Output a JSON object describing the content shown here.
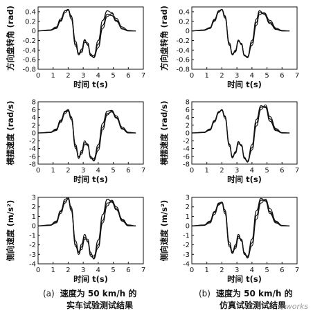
{
  "chart_data": [
    {
      "type": "line",
      "panel": "a-1",
      "ylabel": "方向盘转角 (rad)",
      "xlabel": "时间 t(s)",
      "xlim": [
        0,
        7
      ],
      "ylim": [
        -0.8,
        0.5
      ],
      "xticks": [
        "0",
        "1",
        "2",
        "3",
        "4",
        "5",
        "6",
        "7"
      ],
      "yticks": [
        "0.4",
        "0.2",
        "0",
        "-0.2",
        "-0.4",
        "-0.6",
        "-0.8"
      ],
      "series": [
        {
          "x": [
            0,
            0.8,
            1.2,
            1.5,
            1.8,
            2.0,
            2.2,
            2.5,
            2.7,
            2.9,
            3.1,
            3.3,
            3.5,
            3.7,
            4.0,
            4.3,
            4.6,
            4.9,
            5.2,
            5.6,
            6.0,
            6.5
          ],
          "y": [
            0,
            0.01,
            0.06,
            0.22,
            0.42,
            0.45,
            0.3,
            -0.28,
            -0.5,
            -0.42,
            -0.2,
            -0.28,
            -0.52,
            -0.55,
            -0.2,
            0.22,
            0.42,
            0.38,
            0.22,
            0.04,
            0,
            0
          ]
        },
        {
          "x": [
            0,
            0.8,
            1.2,
            1.5,
            1.8,
            2.0,
            2.2,
            2.5,
            2.7,
            2.9,
            3.1,
            3.3,
            3.5,
            3.7,
            4.0,
            4.3,
            4.6,
            4.9,
            5.2,
            5.6,
            6.0,
            6.5
          ],
          "y": [
            0,
            0.02,
            0.08,
            0.25,
            0.42,
            0.43,
            0.25,
            -0.32,
            -0.48,
            -0.38,
            -0.18,
            -0.3,
            -0.5,
            -0.52,
            -0.28,
            0.12,
            0.35,
            0.32,
            0.2,
            0.05,
            0,
            0
          ]
        },
        {
          "x": [
            0,
            0.8,
            1.2,
            1.5,
            1.8,
            2.0,
            2.2,
            2.5,
            2.7,
            2.9,
            3.1,
            3.3,
            3.5,
            3.7,
            4.0,
            4.3,
            4.6,
            4.9,
            5.2,
            5.6,
            6.0,
            6.5
          ],
          "y": [
            0,
            0.01,
            0.05,
            0.2,
            0.38,
            0.44,
            0.32,
            -0.22,
            -0.46,
            -0.45,
            -0.24,
            -0.25,
            -0.48,
            -0.56,
            -0.35,
            0.05,
            0.3,
            0.36,
            0.26,
            0.08,
            0.01,
            0
          ]
        }
      ]
    },
    {
      "type": "line",
      "panel": "b-1",
      "ylabel": "方向盘转角 (rad)",
      "xlabel": "时间 t(s)",
      "xlim": [
        0,
        7
      ],
      "ylim": [
        -0.8,
        0.5
      ],
      "xticks": [
        "0",
        "1",
        "2",
        "3",
        "4",
        "5",
        "6",
        "7"
      ],
      "yticks": [
        "0.4",
        "0.2",
        "0",
        "-0.2",
        "-0.4",
        "-0.6",
        "-0.8"
      ],
      "series": [
        {
          "x": [
            0,
            0.8,
            1.2,
            1.5,
            1.8,
            2.0,
            2.2,
            2.5,
            2.7,
            2.9,
            3.1,
            3.3,
            3.5,
            3.7,
            4.0,
            4.3,
            4.5,
            4.8,
            5.2,
            5.6,
            6.0,
            6.5
          ],
          "y": [
            0,
            0.01,
            0.06,
            0.22,
            0.42,
            0.45,
            0.3,
            -0.28,
            -0.5,
            -0.42,
            -0.2,
            -0.28,
            -0.52,
            -0.55,
            -0.2,
            0.25,
            0.42,
            0.35,
            0.15,
            0.03,
            0,
            0
          ]
        },
        {
          "x": [
            0,
            0.8,
            1.2,
            1.5,
            1.8,
            2.0,
            2.2,
            2.5,
            2.7,
            2.9,
            3.1,
            3.3,
            3.5,
            3.7,
            4.0,
            4.3,
            4.5,
            4.8,
            5.2,
            5.6,
            6.0,
            6.5
          ],
          "y": [
            0,
            0.02,
            0.07,
            0.24,
            0.41,
            0.44,
            0.27,
            -0.3,
            -0.49,
            -0.4,
            -0.19,
            -0.29,
            -0.51,
            -0.54,
            -0.25,
            0.18,
            0.38,
            0.36,
            0.18,
            0.04,
            0,
            0
          ]
        },
        {
          "x": [
            0,
            0.8,
            1.2,
            1.5,
            1.8,
            2.0,
            2.2,
            2.5,
            2.7,
            2.9,
            3.1,
            3.3,
            3.5,
            3.7,
            4.0,
            4.3,
            4.5,
            4.8,
            5.2,
            5.6,
            6.0,
            6.5
          ],
          "y": [
            0,
            0.01,
            0.05,
            0.2,
            0.39,
            0.45,
            0.32,
            -0.25,
            -0.48,
            -0.44,
            -0.22,
            -0.26,
            -0.5,
            -0.56,
            -0.3,
            0.12,
            0.34,
            0.38,
            0.22,
            0.06,
            0.01,
            0
          ]
        }
      ]
    },
    {
      "type": "line",
      "panel": "a-2",
      "ylabel": "横摆速度 (rad/s)",
      "xlabel": "时间 t(s)",
      "xlim": [
        0,
        7
      ],
      "ylim": [
        -8,
        8
      ],
      "xticks": [
        "0",
        "1",
        "2",
        "3",
        "4",
        "5",
        "6",
        "7"
      ],
      "yticks": [
        "8",
        "6",
        "4",
        "2",
        "0",
        "-2",
        "-4",
        "-6",
        "-8"
      ],
      "series": [
        {
          "x": [
            0,
            0.8,
            1.2,
            1.5,
            1.8,
            2.0,
            2.2,
            2.5,
            2.7,
            2.9,
            3.1,
            3.3,
            3.5,
            3.7,
            4.0,
            4.3,
            4.6,
            4.9,
            5.2,
            5.6,
            6.0,
            6.5
          ],
          "y": [
            0,
            0.1,
            0.8,
            3,
            5.6,
            6,
            4,
            -3.5,
            -6.5,
            -5,
            -2.5,
            -3,
            -6.5,
            -7,
            -3,
            2.5,
            5.6,
            5.8,
            4,
            1,
            0,
            0
          ]
        },
        {
          "x": [
            0,
            0.8,
            1.2,
            1.5,
            1.8,
            2.0,
            2.2,
            2.5,
            2.7,
            2.9,
            3.1,
            3.3,
            3.5,
            3.7,
            4.0,
            4.3,
            4.6,
            4.9,
            5.2,
            5.6,
            6.0,
            6.5
          ],
          "y": [
            0,
            0.2,
            1,
            3.3,
            5.4,
            5.6,
            3.5,
            -4,
            -6.2,
            -4.5,
            -2,
            -3.3,
            -6.2,
            -6.6,
            -3.8,
            1.5,
            5,
            5.4,
            3.8,
            1.2,
            0.1,
            0
          ]
        },
        {
          "x": [
            0,
            0.8,
            1.2,
            1.5,
            1.8,
            2.0,
            2.2,
            2.5,
            2.7,
            2.9,
            3.1,
            3.3,
            3.5,
            3.7,
            4.0,
            4.3,
            4.6,
            4.9,
            5.2,
            5.6,
            6.0,
            6.5
          ],
          "y": [
            0,
            0.1,
            0.6,
            2.7,
            5,
            5.8,
            4.2,
            -3,
            -6,
            -5.4,
            -3,
            -2.8,
            -6,
            -7.2,
            -4.5,
            0.8,
            4.6,
            5.6,
            4.4,
            1.5,
            0.2,
            0
          ]
        }
      ]
    },
    {
      "type": "line",
      "panel": "b-2",
      "ylabel": "横摆速度 (rad/s)",
      "xlabel": "时间 t(s)",
      "xlim": [
        0,
        7
      ],
      "ylim": [
        -8,
        8
      ],
      "xticks": [
        "0",
        "1",
        "2",
        "3",
        "4",
        "5",
        "6",
        "7"
      ],
      "yticks": [
        "8",
        "6",
        "4",
        "2",
        "0",
        "-2",
        "-4",
        "-6",
        "-8"
      ],
      "series": [
        {
          "x": [
            0,
            0.8,
            1.2,
            1.5,
            1.8,
            2.0,
            2.2,
            2.5,
            2.7,
            2.9,
            3.1,
            3.3,
            3.5,
            3.7,
            4.0,
            4.3,
            4.6,
            4.9,
            5.2,
            5.6,
            6.0,
            6.5
          ],
          "y": [
            0,
            0.1,
            0.8,
            3,
            5.4,
            6,
            4.2,
            -3,
            -6.4,
            -5,
            -2.4,
            -3.2,
            -6.6,
            -7.4,
            -3,
            3.5,
            7,
            6.5,
            3,
            0.6,
            0,
            0
          ]
        },
        {
          "x": [
            0,
            0.8,
            1.2,
            1.5,
            1.8,
            2.0,
            2.2,
            2.5,
            2.7,
            2.9,
            3.1,
            3.3,
            3.5,
            3.7,
            4.0,
            4.3,
            4.6,
            4.9,
            5.2,
            5.6,
            6.0,
            6.5
          ],
          "y": [
            0,
            0.2,
            1,
            3.2,
            5.5,
            5.8,
            3.8,
            -3.4,
            -6.2,
            -4.8,
            -2.2,
            -3.4,
            -6.4,
            -7.2,
            -3.8,
            2.6,
            6.6,
            6.8,
            3.6,
            0.8,
            0,
            0
          ]
        },
        {
          "x": [
            0,
            0.8,
            1.2,
            1.5,
            1.8,
            2.0,
            2.2,
            2.5,
            2.7,
            2.9,
            3.1,
            3.3,
            3.5,
            3.7,
            4.0,
            4.3,
            4.6,
            4.9,
            5.2,
            5.6,
            6.0,
            6.5
          ],
          "y": [
            0,
            0.1,
            0.7,
            2.8,
            5.2,
            5.9,
            4.4,
            -2.8,
            -6,
            -5.2,
            -2.8,
            -3,
            -6.2,
            -7.5,
            -4.4,
            1.8,
            6,
            7.2,
            4.2,
            1.1,
            0.1,
            0
          ]
        }
      ]
    },
    {
      "type": "line",
      "panel": "a-3",
      "ylabel": "侧向速度 (m/s²)",
      "xlabel": "时间 t(s)",
      "xlim": [
        0,
        7
      ],
      "ylim": [
        -4,
        3
      ],
      "xticks": [
        "0",
        "1",
        "2",
        "3",
        "4",
        "5",
        "6",
        "7"
      ],
      "yticks": [
        "3",
        "2",
        "1",
        "0",
        "-1",
        "-2",
        "-3",
        "-4"
      ],
      "series": [
        {
          "x": [
            0,
            0.8,
            1.2,
            1.5,
            1.8,
            2.0,
            2.2,
            2.5,
            2.7,
            2.9,
            3.1,
            3.3,
            3.5,
            3.7,
            4.0,
            4.3,
            4.6,
            4.9,
            5.2,
            5.6,
            6.0,
            6.5
          ],
          "y": [
            0,
            0.05,
            0.4,
            1.5,
            2.8,
            3,
            1.8,
            -2,
            -3,
            -2.2,
            -1.2,
            -1.6,
            -3.2,
            -3.4,
            -1.5,
            1.2,
            2.8,
            2.6,
            1.8,
            0.5,
            0,
            0
          ]
        },
        {
          "x": [
            0,
            0.8,
            1.2,
            1.5,
            1.8,
            2.0,
            2.2,
            2.5,
            2.7,
            2.9,
            3.1,
            3.3,
            3.5,
            3.7,
            4.0,
            4.3,
            4.6,
            4.9,
            5.2,
            5.6,
            6.0,
            6.5
          ],
          "y": [
            0,
            0.1,
            0.5,
            1.6,
            2.6,
            2.8,
            1.6,
            -2.2,
            -2.8,
            -1.9,
            -0.9,
            -1.7,
            -3,
            -3.2,
            -2,
            0.6,
            2.4,
            2.5,
            1.7,
            0.6,
            0.05,
            0
          ]
        },
        {
          "x": [
            0,
            0.8,
            1.2,
            1.5,
            1.8,
            2.0,
            2.2,
            2.5,
            2.7,
            2.9,
            3.1,
            3.3,
            3.5,
            3.7,
            4.0,
            4.3,
            4.6,
            4.9,
            5.2,
            5.6,
            6.0,
            6.5
          ],
          "y": [
            0,
            0.05,
            0.3,
            1.3,
            2.4,
            2.9,
            2,
            -1.6,
            -2.7,
            -2.5,
            -1.4,
            -1.4,
            -2.8,
            -3.5,
            -2.3,
            0.3,
            2.1,
            2.7,
            2,
            0.7,
            0.1,
            0
          ]
        }
      ]
    },
    {
      "type": "line",
      "panel": "b-3",
      "ylabel": "侧向速度 (m/s²)",
      "xlabel": "时间 t(s)",
      "xlim": [
        0,
        7
      ],
      "ylim": [
        -4,
        3
      ],
      "xticks": [
        "0",
        "1",
        "2",
        "3",
        "4",
        "5",
        "6",
        "7"
      ],
      "yticks": [
        "3",
        "2",
        "1",
        "0",
        "-1",
        "-2",
        "-3",
        "-4"
      ],
      "series": [
        {
          "x": [
            0,
            0.8,
            1.2,
            1.5,
            1.8,
            2.0,
            2.2,
            2.5,
            2.7,
            2.9,
            3.1,
            3.3,
            3.5,
            3.7,
            4.0,
            4.3,
            4.6,
            4.9,
            5.2,
            5.6,
            6.0,
            6.5
          ],
          "y": [
            0,
            0.05,
            0.4,
            1.4,
            2.4,
            2.5,
            1.5,
            -2,
            -2.9,
            -2.2,
            -1.1,
            -1.5,
            -3,
            -3.3,
            -1.4,
            1.6,
            2.9,
            2.6,
            1.3,
            0.3,
            0,
            0
          ]
        },
        {
          "x": [
            0,
            0.8,
            1.2,
            1.5,
            1.8,
            2.0,
            2.2,
            2.5,
            2.7,
            2.9,
            3.1,
            3.3,
            3.5,
            3.7,
            4.0,
            4.3,
            4.6,
            4.9,
            5.2,
            5.6,
            6.0,
            6.5
          ],
          "y": [
            0,
            0.1,
            0.5,
            1.5,
            2.3,
            2.4,
            1.3,
            -2.2,
            -2.8,
            -2,
            -0.9,
            -1.6,
            -2.9,
            -3.2,
            -1.8,
            1.1,
            2.7,
            2.7,
            1.5,
            0.4,
            0.02,
            0
          ]
        },
        {
          "x": [
            0,
            0.8,
            1.2,
            1.5,
            1.8,
            2.0,
            2.2,
            2.5,
            2.7,
            2.9,
            3.1,
            3.3,
            3.5,
            3.7,
            4.0,
            4.3,
            4.6,
            4.9,
            5.2,
            5.6,
            6.0,
            6.5
          ],
          "y": [
            0,
            0.05,
            0.3,
            1.2,
            2.2,
            2.5,
            1.7,
            -1.7,
            -2.7,
            -2.4,
            -1.3,
            -1.4,
            -2.8,
            -3.4,
            -2.1,
            0.7,
            2.4,
            2.8,
            1.8,
            0.5,
            0.05,
            0
          ]
        }
      ]
    }
  ],
  "captions": {
    "a": {
      "tag": "(a)",
      "line1": "速度为 50 km/h 的",
      "line2": "实车试验测试结果"
    },
    "b": {
      "tag": "(b)",
      "line1": "速度为 50 km/h 的",
      "line2": "仿真试验测试结果"
    }
  },
  "watermark": "e-works"
}
